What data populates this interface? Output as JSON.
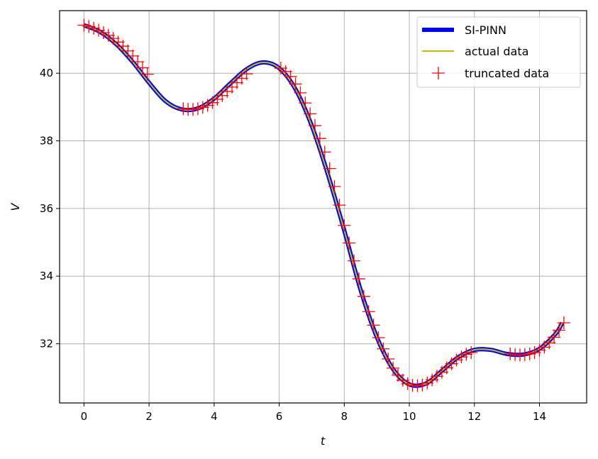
{
  "chart_data": {
    "type": "line",
    "xlabel": "t",
    "ylabel": "V",
    "xlim": [
      -0.75,
      15.45
    ],
    "ylim": [
      30.25,
      41.85
    ],
    "xticks": [
      0,
      2,
      4,
      6,
      8,
      10,
      12,
      14
    ],
    "yticks": [
      32,
      34,
      36,
      38,
      40
    ],
    "grid": true,
    "legend_position": "top-right",
    "legend": [
      "SI-PINN",
      "actual data",
      "truncated data"
    ],
    "colors": {
      "si_pinn": "#0000ff",
      "actual": "#bfbf00",
      "truncated": "#ff0000"
    },
    "series": [
      {
        "name": "SI-PINN",
        "style": "thick-line",
        "x": [
          0,
          0.5,
          1,
          1.5,
          2,
          2.5,
          3,
          3.5,
          4,
          4.5,
          5,
          5.5,
          6,
          6.5,
          7,
          7.5,
          8,
          8.5,
          9,
          9.5,
          10,
          10.5,
          11,
          11.5,
          12,
          12.5,
          13,
          13.5,
          14,
          14.5,
          14.7
        ],
        "y": [
          41.42,
          41.22,
          40.85,
          40.33,
          39.72,
          39.18,
          38.93,
          38.96,
          39.25,
          39.7,
          40.12,
          40.32,
          40.15,
          39.53,
          38.45,
          37.0,
          35.35,
          33.6,
          32.2,
          31.25,
          30.8,
          30.82,
          31.2,
          31.6,
          31.82,
          31.82,
          31.7,
          31.68,
          31.85,
          32.3,
          32.62
        ]
      },
      {
        "name": "actual data",
        "style": "thin-line",
        "x": [
          0,
          0.5,
          1,
          1.5,
          2,
          2.5,
          3,
          3.5,
          4,
          4.5,
          5,
          5.5,
          6,
          6.5,
          7,
          7.5,
          8,
          8.5,
          9,
          9.5,
          10,
          10.5,
          11,
          11.5,
          12,
          12.5,
          13,
          13.5,
          14,
          14.5,
          14.7
        ],
        "y": [
          41.42,
          41.22,
          40.85,
          40.33,
          39.72,
          39.18,
          38.93,
          38.96,
          39.25,
          39.7,
          40.12,
          40.32,
          40.15,
          39.53,
          38.45,
          37.0,
          35.35,
          33.6,
          32.2,
          31.25,
          30.8,
          30.82,
          31.2,
          31.6,
          31.82,
          31.82,
          31.7,
          31.68,
          31.85,
          32.3,
          32.62
        ]
      },
      {
        "name": "truncated data",
        "style": "plus-markers",
        "x": [
          0,
          0.15,
          0.3,
          0.45,
          0.6,
          0.75,
          0.9,
          1.05,
          1.2,
          1.35,
          1.5,
          1.65,
          1.8,
          1.95,
          3.05,
          3.2,
          3.35,
          3.5,
          3.65,
          3.8,
          3.95,
          4.1,
          4.25,
          4.4,
          4.55,
          4.7,
          4.85,
          5.0,
          6.05,
          6.2,
          6.35,
          6.5,
          6.65,
          6.8,
          6.95,
          7.1,
          7.25,
          7.4,
          7.55,
          7.7,
          7.85,
          8.0,
          8.15,
          8.3,
          8.45,
          8.6,
          8.75,
          8.9,
          9.05,
          9.2,
          9.35,
          9.5,
          9.65,
          9.8,
          9.95,
          10.1,
          10.25,
          10.4,
          10.55,
          10.7,
          10.85,
          11.0,
          11.15,
          11.3,
          11.45,
          11.6,
          11.75,
          11.9,
          13.1,
          13.25,
          13.4,
          13.55,
          13.7,
          13.85,
          14.0,
          14.15,
          14.3,
          14.45,
          14.6,
          14.75
        ],
        "y": [
          41.42,
          41.38,
          41.33,
          41.27,
          41.2,
          41.12,
          41.03,
          40.92,
          40.8,
          40.66,
          40.51,
          40.34,
          40.16,
          39.97,
          38.95,
          38.93,
          38.93,
          38.95,
          38.99,
          39.05,
          39.13,
          39.23,
          39.34,
          39.46,
          39.59,
          39.72,
          39.85,
          39.98,
          40.15,
          40.05,
          39.9,
          39.68,
          39.42,
          39.12,
          38.8,
          38.45,
          38.07,
          37.67,
          37.18,
          36.65,
          36.1,
          35.5,
          34.98,
          34.45,
          33.92,
          33.4,
          32.95,
          32.55,
          32.18,
          31.85,
          31.55,
          31.28,
          31.07,
          30.92,
          30.82,
          30.77,
          30.76,
          30.78,
          30.84,
          30.93,
          31.04,
          31.16,
          31.29,
          31.41,
          31.52,
          31.61,
          31.69,
          31.74,
          31.7,
          31.68,
          31.67,
          31.68,
          31.7,
          31.74,
          31.81,
          31.9,
          32.03,
          32.19,
          32.4,
          32.62
        ]
      }
    ]
  }
}
